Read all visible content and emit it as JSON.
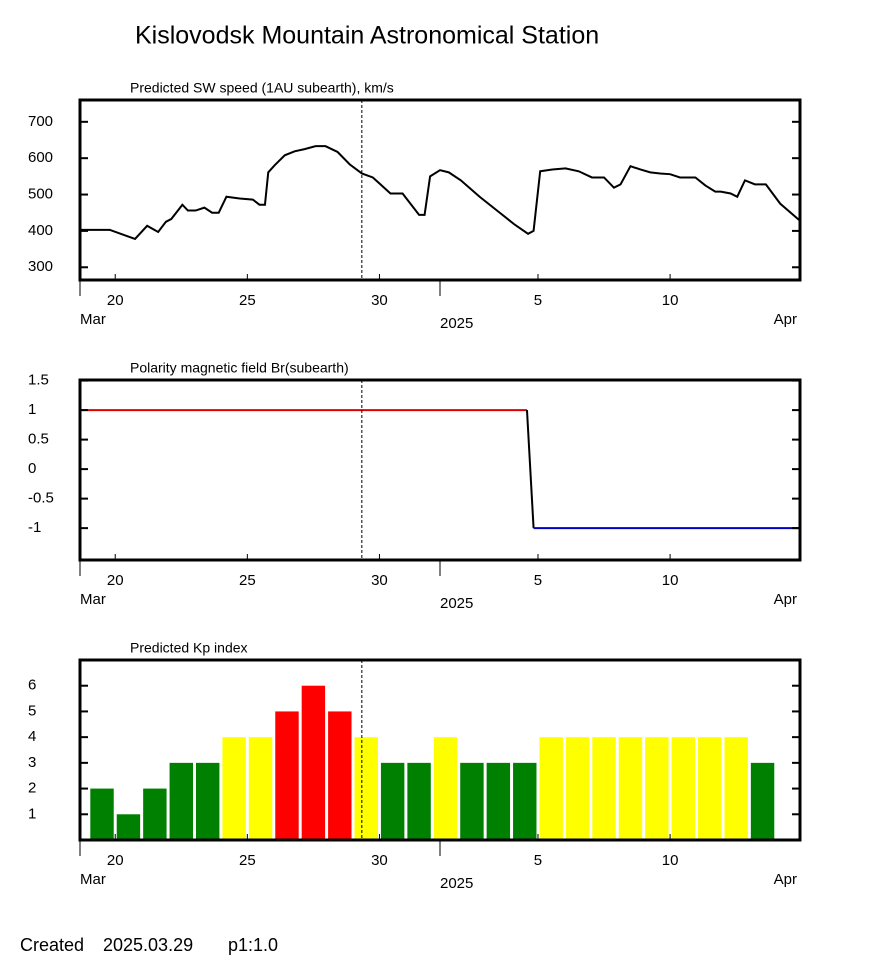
{
  "header": {
    "title": "Kislovodsk Mountain Astronomical Station"
  },
  "footer": {
    "label": "Created",
    "date": "2025.03.29",
    "page": "p1:1.0"
  },
  "chart_data": [
    {
      "type": "line",
      "title": "Predicted SW speed (1AU subearth), km/s",
      "color": "#000000",
      "xlim": [
        "2025-03-18T16:00",
        "2025-04-14T22:00"
      ],
      "xticks": [
        {
          "value": "2025-03-20",
          "label": "20"
        },
        {
          "value": "2025-03-25",
          "label": "25"
        },
        {
          "value": "2025-03-30",
          "label": "30"
        },
        {
          "value": "2025-04-05",
          "label": "5"
        },
        {
          "value": "2025-04-10",
          "label": "10"
        }
      ],
      "year_tick": {
        "value": "2025-04-01T07:00",
        "label": "2025"
      },
      "month_labels": [
        "Mar",
        "Apr"
      ],
      "vline": "2025-03-29T08:00",
      "ylim": [
        265,
        760
      ],
      "yticks": [
        300,
        400,
        500,
        600,
        700
      ],
      "x": [
        "2025-03-18T16:00",
        "2025-03-19T19:00",
        "2025-03-20T18:00",
        "2025-03-21T05:00",
        "2025-03-21T15:00",
        "2025-03-21T22:00",
        "2025-03-22T03:00",
        "2025-03-22T13:00",
        "2025-03-22T18:00",
        "2025-03-23T01:00",
        "2025-03-23T09:00",
        "2025-03-23T16:00",
        "2025-03-23T22:00",
        "2025-03-24T05:00",
        "2025-03-24T17:00",
        "2025-03-25T05:00",
        "2025-03-25T11:00",
        "2025-03-25T16:00",
        "2025-03-25T19:00",
        "2025-03-26T01:00",
        "2025-03-26T10:00",
        "2025-03-26T19:00",
        "2025-03-27T04:00",
        "2025-03-27T14:00",
        "2025-03-27T23:00",
        "2025-03-28T10:00",
        "2025-03-28T21:00",
        "2025-03-29T08:00",
        "2025-03-29T18:00",
        "2025-03-30T10:00",
        "2025-03-30T21:00",
        "2025-03-31T12:00",
        "2025-03-31T17:00",
        "2025-03-31T22:00",
        "2025-04-01T07:00",
        "2025-04-01T15:00",
        "2025-04-02T02:00",
        "2025-04-02T19:00",
        "2025-04-03T12:00",
        "2025-04-04T03:00",
        "2025-04-04T15:00",
        "2025-04-04T20:00",
        "2025-04-05T02:00",
        "2025-04-05T13:00",
        "2025-04-06T01:00",
        "2025-04-06T13:00",
        "2025-04-07T01:00",
        "2025-04-07T12:00",
        "2025-04-07T21:00",
        "2025-04-08T03:00",
        "2025-04-08T12:00",
        "2025-04-08T21:00",
        "2025-04-09T06:00",
        "2025-04-09T15:00",
        "2025-04-10T00:00",
        "2025-04-10T09:00",
        "2025-04-10T23:00",
        "2025-04-11T08:00",
        "2025-04-11T17:00",
        "2025-04-11T22:00",
        "2025-04-12T07:00",
        "2025-04-12T13:00",
        "2025-04-12T20:00",
        "2025-04-13T05:00",
        "2025-04-13T15:00",
        "2025-04-14T04:00",
        "2025-04-14T22:00"
      ],
      "values": [
        403,
        403,
        378,
        414,
        397,
        425,
        433,
        472,
        456,
        456,
        464,
        450,
        450,
        494,
        489,
        486,
        472,
        472,
        561,
        581,
        608,
        619,
        625,
        633,
        633,
        617,
        583,
        558,
        547,
        503,
        503,
        444,
        444,
        550,
        567,
        561,
        539,
        494,
        453,
        417,
        392,
        400,
        564,
        569,
        572,
        564,
        547,
        547,
        519,
        528,
        578,
        569,
        561,
        558,
        556,
        547,
        547,
        525,
        508,
        508,
        503,
        494,
        539,
        528,
        528,
        475,
        428
      ]
    },
    {
      "type": "segments",
      "title": "Polarity magnetic field  Br(subearth)",
      "xlim": [
        "2025-03-18T16:00",
        "2025-04-14T22:00"
      ],
      "xticks": [
        {
          "value": "2025-03-20",
          "label": "20"
        },
        {
          "value": "2025-03-25",
          "label": "25"
        },
        {
          "value": "2025-03-30",
          "label": "30"
        },
        {
          "value": "2025-04-05",
          "label": "5"
        },
        {
          "value": "2025-04-10",
          "label": "10"
        }
      ],
      "year_tick": {
        "value": "2025-04-01T07:00",
        "label": "2025"
      },
      "month_labels": [
        "Mar",
        "Apr"
      ],
      "vline": "2025-03-29T08:00",
      "ylim": [
        -1.54,
        1.51
      ],
      "yticks": [
        -1,
        -0.5,
        0,
        0.5,
        1,
        1.5
      ],
      "x": [
        "2025-03-18T16:00",
        "2025-04-04T14:00",
        "2025-04-04T20:00",
        "2025-04-14T22:00"
      ],
      "values": [
        1,
        1,
        -1,
        -1
      ],
      "colors": [
        "#e00000",
        "#000000",
        "#0000c0"
      ]
    },
    {
      "type": "bar",
      "title": "Predicted Kp index",
      "xlim": [
        "2025-03-18T16:00",
        "2025-04-14T22:00"
      ],
      "xticks": [
        {
          "value": "2025-03-20",
          "label": "20"
        },
        {
          "value": "2025-03-25",
          "label": "25"
        },
        {
          "value": "2025-03-30",
          "label": "30"
        },
        {
          "value": "2025-04-05",
          "label": "5"
        },
        {
          "value": "2025-04-10",
          "label": "10"
        }
      ],
      "year_tick": {
        "value": "2025-04-01T07:00",
        "label": "2025"
      },
      "month_labels": [
        "Mar",
        "Apr"
      ],
      "vline": "2025-03-29T08:00",
      "ylim": [
        0,
        7
      ],
      "yticks": [
        1,
        2,
        3,
        4,
        5,
        6
      ],
      "x": [
        "2025-03-19",
        "2025-03-20",
        "2025-03-21",
        "2025-03-22",
        "2025-03-23",
        "2025-03-24",
        "2025-03-25",
        "2025-03-26",
        "2025-03-27",
        "2025-03-28",
        "2025-03-29",
        "2025-03-30",
        "2025-03-31",
        "2025-04-01",
        "2025-04-02",
        "2025-04-03",
        "2025-04-04",
        "2025-04-05",
        "2025-04-06",
        "2025-04-07",
        "2025-04-08",
        "2025-04-09",
        "2025-04-10",
        "2025-04-11",
        "2025-04-12",
        "2025-04-13"
      ],
      "values": [
        2,
        1,
        2,
        3,
        3,
        4,
        4,
        5,
        6,
        5,
        4,
        3,
        3,
        4,
        3,
        3,
        3,
        4,
        4,
        4,
        4,
        4,
        4,
        4,
        4,
        3
      ],
      "colors": [
        "#008000",
        "#008000",
        "#008000",
        "#008000",
        "#008000",
        "#ffff00",
        "#ffff00",
        "#ff0000",
        "#ff0000",
        "#ff0000",
        "#ffff00",
        "#008000",
        "#008000",
        "#ffff00",
        "#008000",
        "#008000",
        "#008000",
        "#ffff00",
        "#ffff00",
        "#ffff00",
        "#ffff00",
        "#ffff00",
        "#ffff00",
        "#ffff00",
        "#ffff00",
        "#008000"
      ]
    }
  ]
}
